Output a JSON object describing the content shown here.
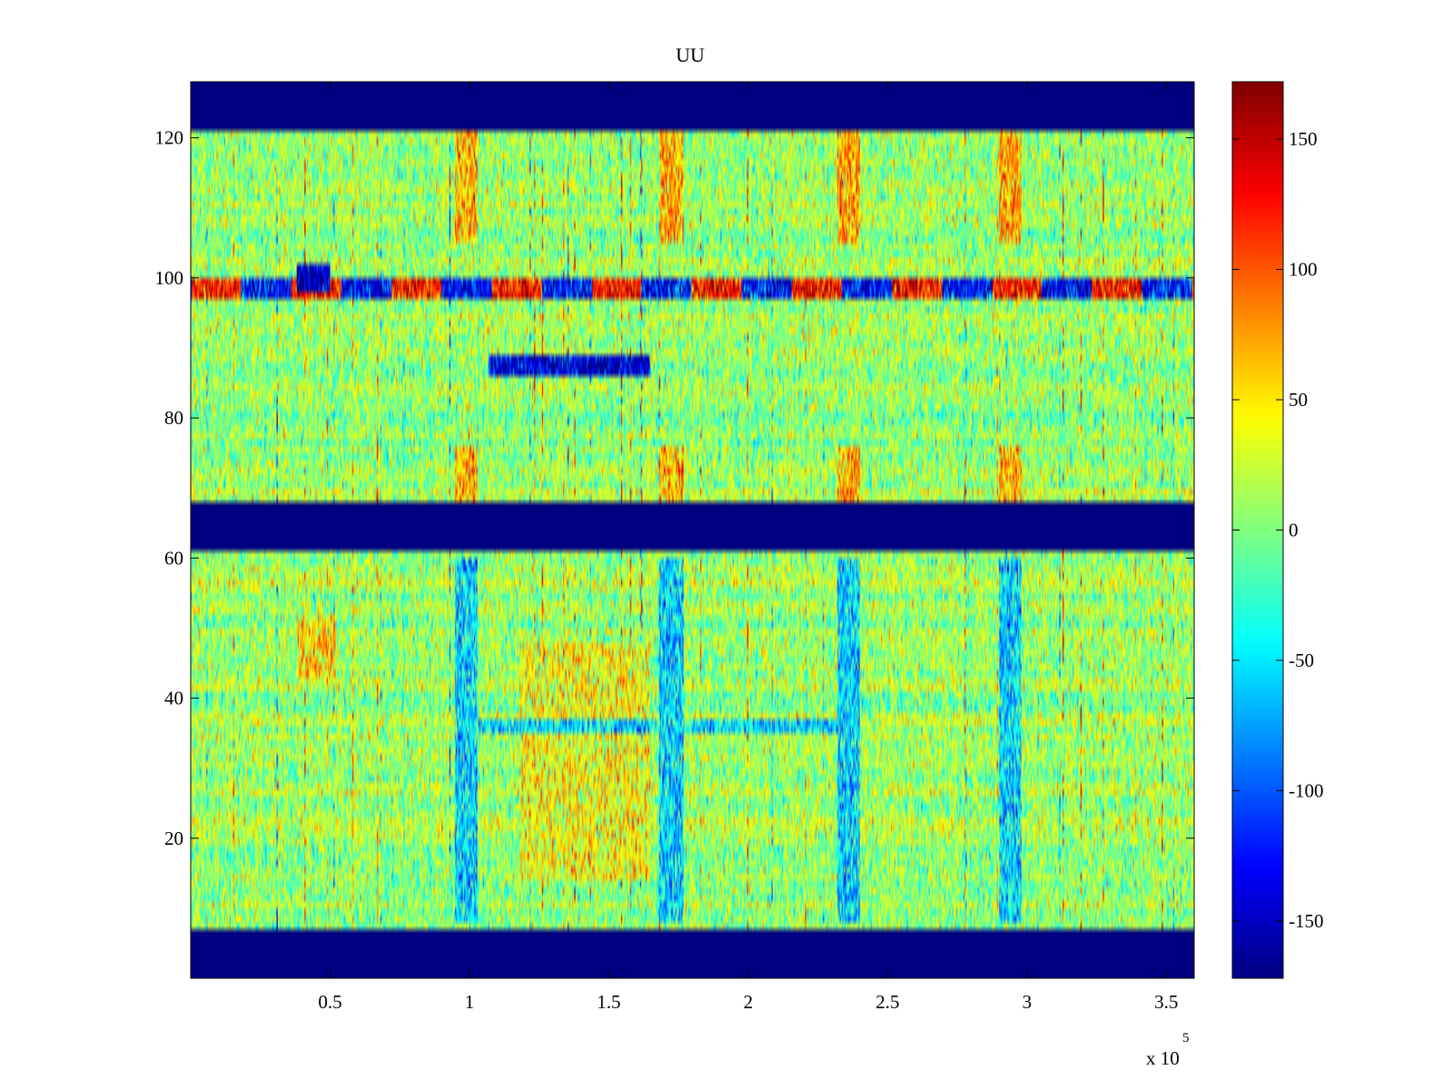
{
  "chart_data": {
    "type": "heatmap",
    "title": "UU",
    "xlabel": "",
    "ylabel": "",
    "xlim": [
      0,
      360000
    ],
    "ylim": [
      0,
      128
    ],
    "x_ticks": [
      {
        "value": 50000,
        "label": "0.5"
      },
      {
        "value": 100000,
        "label": "1"
      },
      {
        "value": 150000,
        "label": "1.5"
      },
      {
        "value": 200000,
        "label": "2"
      },
      {
        "value": 250000,
        "label": "2.5"
      },
      {
        "value": 300000,
        "label": "3"
      },
      {
        "value": 350000,
        "label": "3.5"
      }
    ],
    "x_exponent": {
      "base": "x 10",
      "power": "5"
    },
    "y_ticks": [
      {
        "value": 20,
        "label": "20"
      },
      {
        "value": 40,
        "label": "40"
      },
      {
        "value": 60,
        "label": "60"
      },
      {
        "value": 80,
        "label": "80"
      },
      {
        "value": 100,
        "label": "100"
      },
      {
        "value": 120,
        "label": "120"
      }
    ],
    "colorbar": {
      "range": [
        -172,
        172
      ],
      "ticks": [
        {
          "value": 150,
          "label": "150"
        },
        {
          "value": 100,
          "label": "100"
        },
        {
          "value": 50,
          "label": "50"
        },
        {
          "value": 0,
          "label": "0"
        },
        {
          "value": -50,
          "label": "-50"
        },
        {
          "value": -100,
          "label": "-100"
        },
        {
          "value": -150,
          "label": "-150"
        }
      ],
      "colormap": "jet"
    },
    "masked_row_bands": [
      {
        "y_start": 0,
        "y_end": 7
      },
      {
        "y_start": 61,
        "y_end": 68
      },
      {
        "y_start": 121,
        "y_end": 128
      }
    ],
    "mask_value": -172,
    "mask_color": "#00008f",
    "background_level": 10,
    "background_noise": 28,
    "features": [
      {
        "y": [
          97,
          100
        ],
        "x": [
          0,
          360000
        ],
        "level": 0,
        "note": "noisy strong band"
      },
      {
        "y": [
          86,
          89
        ],
        "x": [
          107000,
          165000
        ],
        "level": -140
      },
      {
        "y": [
          56,
          58
        ],
        "x": [
          95000,
          103000
        ],
        "level": -140
      },
      {
        "y": [
          56,
          58
        ],
        "x": [
          168000,
          177000
        ],
        "level": -140
      },
      {
        "y": [
          56,
          58
        ],
        "x": [
          232000,
          240000
        ],
        "level": -140
      },
      {
        "y": [
          56,
          58
        ],
        "x": [
          290000,
          298000
        ],
        "level": -140
      },
      {
        "y": [
          8,
          60
        ],
        "x": [
          95000,
          103000
        ],
        "level": -55
      },
      {
        "y": [
          8,
          60
        ],
        "x": [
          168000,
          177000
        ],
        "level": -55
      },
      {
        "y": [
          8,
          60
        ],
        "x": [
          232000,
          240000
        ],
        "level": -55
      },
      {
        "y": [
          8,
          60
        ],
        "x": [
          290000,
          298000
        ],
        "level": -55
      },
      {
        "y": [
          105,
          121
        ],
        "x": [
          95000,
          103000
        ],
        "level": 70
      },
      {
        "y": [
          105,
          121
        ],
        "x": [
          168000,
          177000
        ],
        "level": 70
      },
      {
        "y": [
          105,
          121
        ],
        "x": [
          232000,
          240000
        ],
        "level": 70
      },
      {
        "y": [
          105,
          121
        ],
        "x": [
          290000,
          298000
        ],
        "level": 70
      },
      {
        "y": [
          68,
          76
        ],
        "x": [
          95000,
          103000
        ],
        "level": 70
      },
      {
        "y": [
          68,
          76
        ],
        "x": [
          168000,
          177000
        ],
        "level": 70
      },
      {
        "y": [
          68,
          76
        ],
        "x": [
          232000,
          240000
        ],
        "level": 70
      },
      {
        "y": [
          68,
          76
        ],
        "x": [
          290000,
          298000
        ],
        "level": 70
      },
      {
        "y": [
          14,
          48
        ],
        "x": [
          118000,
          165000
        ],
        "level": 40
      },
      {
        "y": [
          35,
          37
        ],
        "x": [
          100000,
          240000
        ],
        "level": -50
      },
      {
        "y": [
          43,
          52
        ],
        "x": [
          38000,
          52000
        ],
        "level": 55
      },
      {
        "y": [
          98,
          102
        ],
        "x": [
          38000,
          50000
        ],
        "level": -150
      }
    ]
  }
}
